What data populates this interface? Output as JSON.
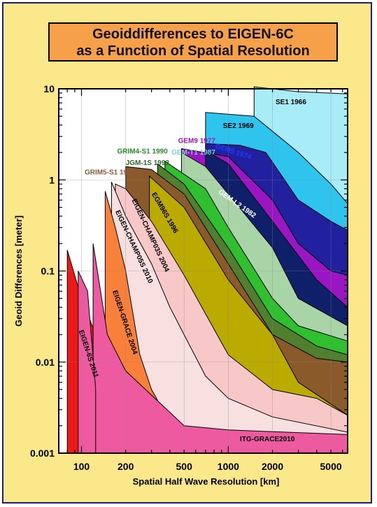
{
  "title": {
    "line1": "Geoiddifferences to EIGEN-6C",
    "line2": "as a Function of Spatial Resolution"
  },
  "chart_data": {
    "type": "area",
    "xscale": "log",
    "yscale": "log",
    "xlim": [
      70,
      6500
    ],
    "ylim": [
      0.001,
      10
    ],
    "xlabel": "Spatial Half Wave Resolution [km]",
    "ylabel": "Geoid Differences [meter]",
    "xticks": [
      {
        "v": 100,
        "label": "100",
        "major": true
      },
      {
        "v": 200,
        "label": "200",
        "major": false
      },
      {
        "v": 500,
        "label": "500",
        "major": false
      },
      {
        "v": 1000,
        "label": "1000",
        "major": true
      },
      {
        "v": 2000,
        "label": "2000",
        "major": false
      },
      {
        "v": 5000,
        "label": "5000",
        "major": false
      }
    ],
    "yticks": [
      {
        "v": 10,
        "label": "10"
      },
      {
        "v": 1,
        "label": "1"
      },
      {
        "v": 0.1,
        "label": "0.1"
      },
      {
        "v": 0.01,
        "label": "0.01"
      },
      {
        "v": 0.001,
        "label": "0.001"
      }
    ],
    "grid": true,
    "series": [
      {
        "name": "SE1 1966",
        "color": "#a8ecf8",
        "label_x": 2100,
        "label_y": 6.8,
        "label_rot": 0,
        "label_color": "#000000",
        "points": [
          [
            1500,
            10.5
          ],
          [
            3000,
            9.3
          ],
          [
            6500,
            8.8
          ]
        ]
      },
      {
        "name": "SE2 1969",
        "color": "#2fc4ee",
        "label_x": 920,
        "label_y": 3.7,
        "label_rot": 0,
        "label_color": "#000000",
        "points": [
          [
            700,
            5.5
          ],
          [
            1500,
            5.0
          ],
          [
            3000,
            2.0
          ],
          [
            5000,
            0.9
          ],
          [
            6500,
            0.55
          ]
        ]
      },
      {
        "name": "GEM5 1974",
        "color": "#2121a0",
        "label_x": 810,
        "label_y": 2.25,
        "label_rot": 18,
        "label_color": "#1a3aff",
        "points": [
          [
            700,
            2.5
          ],
          [
            1200,
            2.4
          ],
          [
            1800,
            2.0
          ],
          [
            3000,
            0.6
          ],
          [
            5000,
            0.35
          ],
          [
            6500,
            0.28
          ]
        ]
      },
      {
        "name": "GEM9 1977",
        "color": "#9a16c2",
        "label_x": 455,
        "label_y": 2.55,
        "label_rot": 0,
        "label_color": "#9a16c2",
        "points": [
          [
            480,
            2.2
          ],
          [
            1000,
            1.8
          ],
          [
            2000,
            0.6
          ],
          [
            3000,
            0.2
          ],
          [
            5000,
            0.1
          ],
          [
            6500,
            0.09
          ]
        ]
      },
      {
        "name": "GEM-L2 1982",
        "color": "#0f1f6a",
        "label_x": 850,
        "label_y": 0.72,
        "label_rot": 35,
        "label_color": "#ffffff",
        "points": [
          [
            700,
            2.1
          ],
          [
            1000,
            1.5
          ],
          [
            2000,
            0.35
          ],
          [
            4000,
            0.08
          ],
          [
            6500,
            0.04
          ]
        ]
      },
      {
        "name": "GEM-T1 1987",
        "color": "#a8d4a8",
        "label_x": 410,
        "label_y": 1.9,
        "label_rot": 0,
        "label_color": "#7fcfcf",
        "points": [
          [
            480,
            2.0
          ],
          [
            700,
            1.4
          ],
          [
            1000,
            0.7
          ],
          [
            2000,
            0.18
          ],
          [
            3000,
            0.05
          ],
          [
            6500,
            0.025
          ]
        ]
      },
      {
        "name": "GRIM4-S1 1990",
        "color": "#2fbf2f",
        "label_x": 175,
        "label_y": 1.95,
        "label_rot": 0,
        "label_color": "#2a8a2a",
        "points": [
          [
            370,
            1.6
          ],
          [
            700,
            0.8
          ],
          [
            1000,
            0.3
          ],
          [
            2000,
            0.05
          ],
          [
            3000,
            0.025
          ],
          [
            6500,
            0.017
          ]
        ]
      },
      {
        "name": "JGM-1S 1993",
        "color": "#4f7f2f",
        "label_x": 200,
        "label_y": 1.45,
        "label_rot": 0,
        "label_color": "#2a6a2a",
        "points": [
          [
            330,
            1.5
          ],
          [
            500,
            0.9
          ],
          [
            1000,
            0.18
          ],
          [
            2000,
            0.03
          ],
          [
            4000,
            0.015
          ],
          [
            6500,
            0.012
          ]
        ]
      },
      {
        "name": "GRIM5-S1 1999",
        "color": "#8a5a2a",
        "label_x": 105,
        "label_y": 1.15,
        "label_rot": 0,
        "label_color": "#8a5a3a",
        "points": [
          [
            200,
            1.4
          ],
          [
            300,
            1.3
          ],
          [
            500,
            0.7
          ],
          [
            1000,
            0.12
          ],
          [
            2000,
            0.02
          ],
          [
            4000,
            0.011
          ],
          [
            6500,
            0.01
          ]
        ]
      },
      {
        "name": "EGM96S 1996",
        "color": "#bbaa00",
        "label_x": 300,
        "label_y": 0.7,
        "label_rot": 60,
        "label_color": "#000000",
        "points": [
          [
            290,
            1.1
          ],
          [
            500,
            0.5
          ],
          [
            1000,
            0.08
          ],
          [
            2000,
            0.02
          ],
          [
            3000,
            0.006
          ],
          [
            6500,
            0.0026
          ]
        ]
      },
      {
        "name": "EIGEN-CHAMP03S 2004",
        "color": "#f8c8c8",
        "label_x": 220,
        "label_y": 0.6,
        "label_rot": 65,
        "label_color": "#000000",
        "points": [
          [
            170,
            0.9
          ],
          [
            200,
            0.8
          ],
          [
            300,
            0.35
          ],
          [
            500,
            0.09
          ],
          [
            1000,
            0.012
          ],
          [
            2000,
            0.005
          ],
          [
            4000,
            0.004
          ],
          [
            6500,
            0.0026
          ]
        ]
      },
      {
        "name": "EIGEN-CHAMP05S 2010",
        "color": "#f8e0e0",
        "label_x": 170,
        "label_y": 0.45,
        "label_rot": 65,
        "label_color": "#000000",
        "points": [
          [
            160,
            0.95
          ],
          [
            200,
            0.4
          ],
          [
            300,
            0.12
          ],
          [
            400,
            0.04
          ],
          [
            700,
            0.007
          ],
          [
            1000,
            0.004
          ],
          [
            2000,
            0.0025
          ],
          [
            6500,
            0.0017
          ]
        ]
      },
      {
        "name": "EIGEN-GRACE 2004",
        "color": "#f88038",
        "label_x": 163,
        "label_y": 0.06,
        "label_rot": 72,
        "label_color": "#000000",
        "points": [
          [
            145,
            0.75
          ],
          [
            170,
            0.3
          ],
          [
            200,
            0.1
          ],
          [
            250,
            0.012
          ],
          [
            300,
            0.005
          ],
          [
            400,
            0.0022
          ],
          [
            500,
            0.0017
          ]
        ]
      },
      {
        "name": "EIGEN-6S 2011",
        "color": "#ee1818",
        "label_x": 96,
        "label_y": 0.022,
        "label_rot": 72,
        "label_color": "#000000",
        "points": [
          [
            80,
            0.17
          ],
          [
            100,
            0.05
          ],
          [
            125,
            0.02
          ],
          [
            150,
            0.009
          ],
          [
            165,
            0.0045
          ],
          [
            180,
            0.0015
          ],
          [
            185,
            0.001
          ]
        ]
      },
      {
        "name": "ITG-GRACE2010",
        "color": "#ee5aa0",
        "label_x": 1200,
        "label_y": 0.00135,
        "label_rot": 0,
        "label_color": "#000000",
        "points": [
          [
            120,
            0.2
          ],
          [
            150,
            0.02
          ],
          [
            200,
            0.008
          ],
          [
            500,
            0.002
          ],
          [
            1000,
            0.0018
          ],
          [
            6500,
            0.0016
          ]
        ]
      }
    ],
    "extra_pink_spike": {
      "points": [
        [
          95,
          0.1
        ],
        [
          110,
          0.06
        ],
        [
          125,
          0.005
        ]
      ]
    }
  }
}
